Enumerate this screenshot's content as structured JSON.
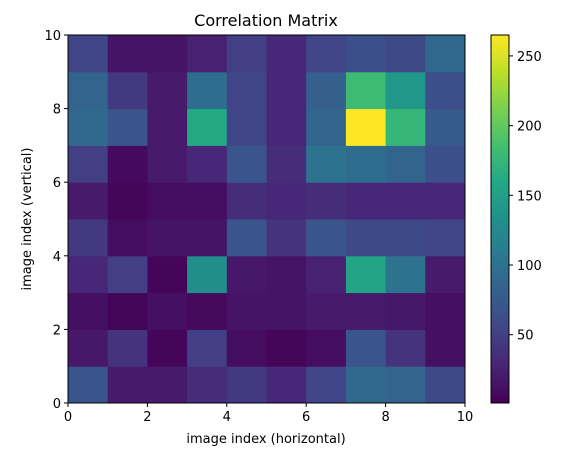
{
  "chart_data": {
    "type": "heatmap",
    "title": "Correlation Matrix",
    "xlabel": "image index (horizontal)",
    "ylabel": "image index (vertical)",
    "xlim": [
      0,
      10
    ],
    "ylim": [
      0,
      10
    ],
    "x_ticks": [
      "0",
      "2",
      "4",
      "6",
      "8",
      "10"
    ],
    "y_ticks": [
      "0",
      "2",
      "4",
      "6",
      "8",
      "10"
    ],
    "colormap": "viridis",
    "color_range": [
      1,
      265
    ],
    "colorbar_ticks": [
      "50",
      "100",
      "150",
      "200",
      "250"
    ],
    "grid": false,
    "matrix_rows_bottom_to_top": [
      [
        70,
        20,
        20,
        35,
        45,
        30,
        55,
        90,
        85,
        60
      ],
      [
        18,
        40,
        5,
        50,
        10,
        5,
        10,
        70,
        40,
        12
      ],
      [
        12,
        3,
        12,
        7,
        15,
        15,
        20,
        20,
        18,
        12
      ],
      [
        30,
        50,
        5,
        130,
        18,
        15,
        25,
        155,
        100,
        20
      ],
      [
        45,
        10,
        15,
        15,
        70,
        40,
        70,
        60,
        60,
        55
      ],
      [
        20,
        5,
        10,
        10,
        35,
        30,
        35,
        30,
        30,
        30
      ],
      [
        50,
        8,
        20,
        30,
        70,
        35,
        100,
        95,
        85,
        65
      ],
      [
        90,
        70,
        20,
        160,
        55,
        30,
        85,
        265,
        175,
        75
      ],
      [
        85,
        45,
        20,
        95,
        55,
        30,
        80,
        180,
        140,
        65
      ],
      [
        55,
        15,
        15,
        25,
        50,
        30,
        55,
        65,
        60,
        90
      ]
    ]
  }
}
